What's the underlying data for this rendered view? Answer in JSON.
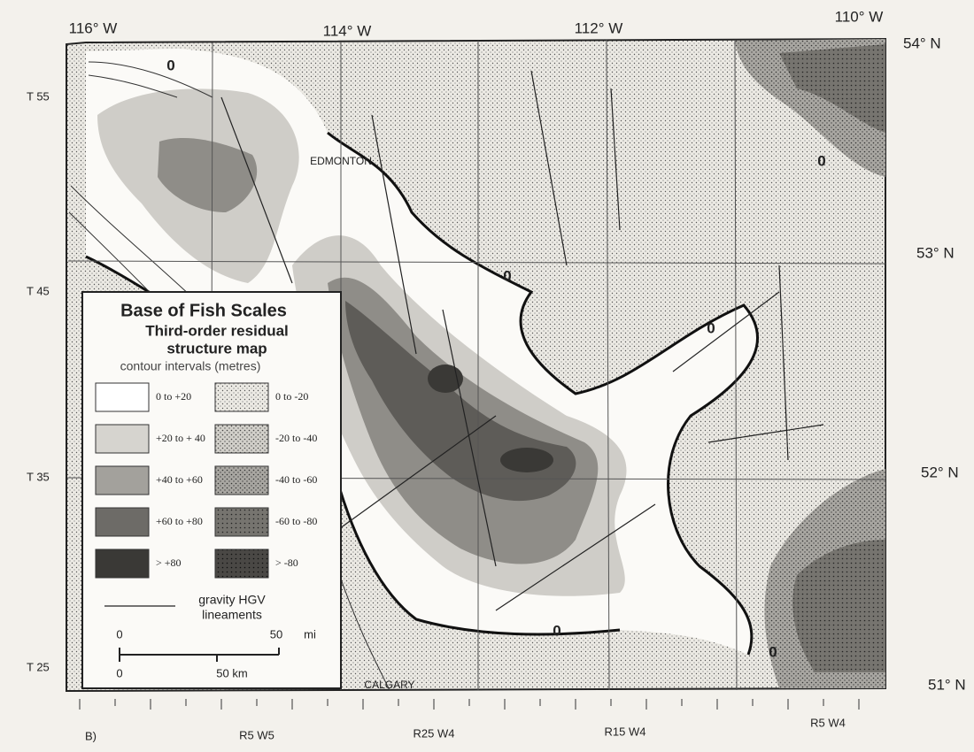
{
  "map": {
    "panel_label": "B)",
    "longitude_labels": [
      "116° W",
      "114° W",
      "112° W",
      "110° W"
    ],
    "latitude_labels": [
      "54° N",
      "53° N",
      "52° N",
      "51° N"
    ],
    "township_labels": [
      "T 55",
      "T 45",
      "T 35",
      "T 25"
    ],
    "range_labels": [
      "R5 W5",
      "R25 W4",
      "R15 W4",
      "R5 W4"
    ],
    "cities": [
      "EDMONTON",
      "CALGARY"
    ],
    "contour_labels": [
      "0",
      "0",
      "0",
      "0",
      "0",
      "0"
    ]
  },
  "legend": {
    "title": "Base of Fish Scales",
    "subtitle_lines": [
      "Third-order residual",
      "structure map"
    ],
    "intervals_heading": "contour intervals (metres)",
    "positive": [
      "0 to +20",
      "+20 to + 40",
      "+40 to +60",
      "+60 to +80",
      "> +80"
    ],
    "negative": [
      "0 to -20",
      "-20 to -40",
      "-40 to -60",
      "-60 to -80",
      "> -80"
    ],
    "lineament_label": [
      "gravity HGV",
      "lineaments"
    ],
    "scale": {
      "mi_ticks": [
        "0",
        "50"
      ],
      "mi_unit": "mi",
      "km_ticks": [
        "0",
        "50 km"
      ]
    }
  }
}
